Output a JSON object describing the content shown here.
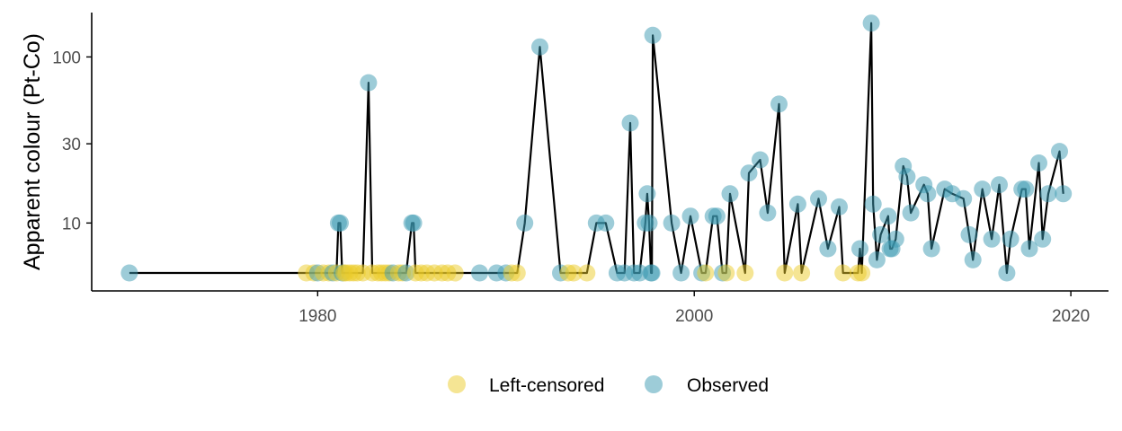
{
  "chart_data": {
    "type": "line+scatter",
    "title": "",
    "xlabel": "",
    "ylabel": "Apparent colour (Pt-Co)",
    "y_scale": "log10",
    "xlim": [
      1968,
      2022
    ],
    "ylim": [
      3.9,
      185
    ],
    "x_ticks": [
      {
        "value": 1980,
        "label": "1980"
      },
      {
        "value": 2000,
        "label": "2000"
      },
      {
        "value": 2020,
        "label": "2020"
      }
    ],
    "y_ticks": [
      {
        "value": 10,
        "label": "10"
      },
      {
        "value": 30,
        "label": "30"
      },
      {
        "value": 100,
        "label": "100"
      }
    ],
    "grid": false,
    "legend": {
      "position": "bottom",
      "items": [
        {
          "key": "censored",
          "label": "Left-censored",
          "color": "#EBCC2A"
        },
        {
          "key": "observed",
          "label": "Observed",
          "color": "#3B9AB2"
        }
      ]
    },
    "line_color": "#000000",
    "series": [
      {
        "name": "Left-censored",
        "values": [
          [
            1979.4,
            5
          ],
          [
            1979.8,
            5
          ],
          [
            1980.3,
            5
          ],
          [
            1980.6,
            5
          ],
          [
            1981.0,
            5
          ],
          [
            1981.4,
            5
          ],
          [
            1981.5,
            5
          ],
          [
            1981.7,
            5
          ],
          [
            1981.9,
            5
          ],
          [
            1982.1,
            5
          ],
          [
            1982.4,
            5
          ],
          [
            1982.9,
            5
          ],
          [
            1983.2,
            5
          ],
          [
            1983.4,
            5
          ],
          [
            1983.6,
            5
          ],
          [
            1983.8,
            5
          ],
          [
            1984.3,
            5
          ],
          [
            1984.5,
            5
          ],
          [
            1985.2,
            5
          ],
          [
            1985.5,
            5
          ],
          [
            1985.8,
            5
          ],
          [
            1986.2,
            5
          ],
          [
            1986.6,
            5
          ],
          [
            1986.9,
            5
          ],
          [
            1987.3,
            5
          ],
          [
            1990.3,
            5
          ],
          [
            1990.6,
            5
          ],
          [
            1993.3,
            5
          ],
          [
            1993.6,
            5
          ],
          [
            1994.3,
            5
          ],
          [
            2000.6,
            5
          ],
          [
            2001.7,
            5
          ],
          [
            2002.7,
            5
          ],
          [
            2004.8,
            5
          ],
          [
            2005.7,
            5
          ],
          [
            2007.9,
            5
          ],
          [
            2008.7,
            5
          ],
          [
            2008.9,
            5
          ]
        ]
      },
      {
        "name": "Observed",
        "values": [
          [
            1970.0,
            5
          ],
          [
            1980.0,
            5
          ],
          [
            1980.8,
            5
          ],
          [
            1981.1,
            10
          ],
          [
            1981.2,
            10
          ],
          [
            1981.3,
            5
          ],
          [
            1982.7,
            70
          ],
          [
            1984.0,
            5
          ],
          [
            1984.7,
            5
          ],
          [
            1985.0,
            10
          ],
          [
            1985.1,
            10
          ],
          [
            1988.6,
            5
          ],
          [
            1989.5,
            5
          ],
          [
            1990.0,
            5
          ],
          [
            1991.0,
            10
          ],
          [
            1991.8,
            115
          ],
          [
            1992.9,
            5
          ],
          [
            1994.8,
            10
          ],
          [
            1995.3,
            10
          ],
          [
            1995.9,
            5
          ],
          [
            1996.3,
            5
          ],
          [
            1996.6,
            40
          ],
          [
            1996.8,
            5
          ],
          [
            1997.1,
            5
          ],
          [
            1997.4,
            10
          ],
          [
            1997.5,
            15
          ],
          [
            1997.6,
            10
          ],
          [
            1997.7,
            5
          ],
          [
            1997.75,
            5
          ],
          [
            1997.8,
            135
          ],
          [
            1998.8,
            10
          ],
          [
            1999.3,
            5
          ],
          [
            1999.8,
            11
          ],
          [
            2000.4,
            5
          ],
          [
            2001.0,
            11
          ],
          [
            2001.2,
            11
          ],
          [
            2001.5,
            5
          ],
          [
            2001.9,
            15
          ],
          [
            2002.9,
            20
          ],
          [
            2003.5,
            24
          ],
          [
            2003.9,
            11.5
          ],
          [
            2004.5,
            52
          ],
          [
            2005.5,
            13
          ],
          [
            2006.6,
            14
          ],
          [
            2007.1,
            7
          ],
          [
            2007.7,
            12.5
          ],
          [
            2008.8,
            7
          ],
          [
            2009.4,
            160
          ],
          [
            2009.5,
            13
          ],
          [
            2009.7,
            6
          ],
          [
            2009.9,
            8.5
          ],
          [
            2010.3,
            11
          ],
          [
            2010.4,
            7
          ],
          [
            2010.5,
            7
          ],
          [
            2010.7,
            8
          ],
          [
            2011.1,
            22
          ],
          [
            2011.3,
            19
          ],
          [
            2011.5,
            11.5
          ],
          [
            2012.2,
            17
          ],
          [
            2012.4,
            15
          ],
          [
            2012.6,
            7
          ],
          [
            2013.3,
            16
          ],
          [
            2013.7,
            15
          ],
          [
            2014.3,
            14
          ],
          [
            2014.6,
            8.5
          ],
          [
            2014.8,
            6
          ],
          [
            2015.3,
            16
          ],
          [
            2015.8,
            8
          ],
          [
            2016.2,
            17
          ],
          [
            2016.6,
            5
          ],
          [
            2016.8,
            8
          ],
          [
            2017.4,
            16
          ],
          [
            2017.6,
            16
          ],
          [
            2017.8,
            7
          ],
          [
            2018.3,
            23
          ],
          [
            2018.5,
            8
          ],
          [
            2018.8,
            15
          ],
          [
            2019.4,
            27
          ],
          [
            2019.6,
            15
          ]
        ]
      }
    ]
  }
}
